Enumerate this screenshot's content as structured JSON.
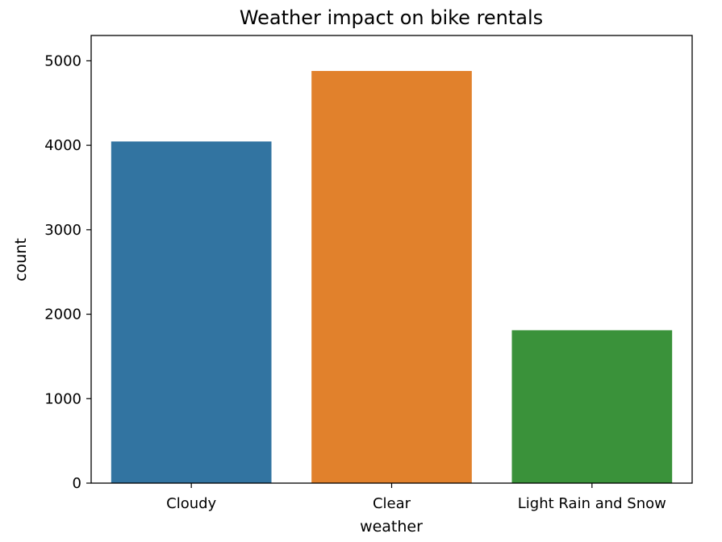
{
  "chart_data": {
    "type": "bar",
    "title": "Weather impact on bike rentals",
    "xlabel": "weather",
    "ylabel": "count",
    "categories": [
      "Cloudy",
      "Clear",
      "Light Rain and Snow"
    ],
    "values": [
      4045,
      4880,
      1810
    ],
    "colors": [
      "#3274a1",
      "#e1812c",
      "#3a923a"
    ],
    "ylim": [
      0,
      5300
    ],
    "yticks": [
      0,
      1000,
      2000,
      3000,
      4000,
      5000
    ],
    "ytick_labels": [
      "0",
      "1000",
      "2000",
      "3000",
      "4000",
      "5000"
    ],
    "grid": false,
    "legend": "none"
  }
}
